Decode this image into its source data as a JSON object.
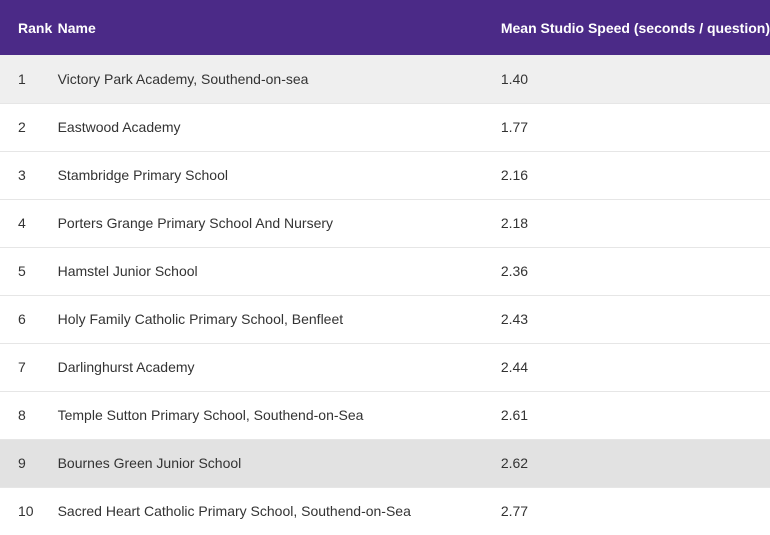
{
  "header": {
    "rank": "Rank",
    "name": "Name",
    "speed": "Mean Studio Speed (seconds / question)"
  },
  "rows": [
    {
      "rank": "1",
      "name": "Victory Park Academy, Southend-on-sea",
      "speed": "1.40"
    },
    {
      "rank": "2",
      "name": "Eastwood Academy",
      "speed": "1.77"
    },
    {
      "rank": "3",
      "name": "Stambridge Primary School",
      "speed": "2.16"
    },
    {
      "rank": "4",
      "name": "Porters Grange Primary School And Nursery",
      "speed": "2.18"
    },
    {
      "rank": "5",
      "name": "Hamstel Junior School",
      "speed": "2.36"
    },
    {
      "rank": "6",
      "name": "Holy Family Catholic Primary School, Benfleet",
      "speed": "2.43"
    },
    {
      "rank": "7",
      "name": "Darlinghurst Academy",
      "speed": "2.44"
    },
    {
      "rank": "8",
      "name": "Temple Sutton Primary School, Southend-on-Sea",
      "speed": "2.61"
    },
    {
      "rank": "9",
      "name": "Bournes Green Junior School",
      "speed": "2.62"
    },
    {
      "rank": "10",
      "name": "Sacred Heart Catholic Primary School, Southend-on-Sea",
      "speed": "2.77"
    }
  ]
}
